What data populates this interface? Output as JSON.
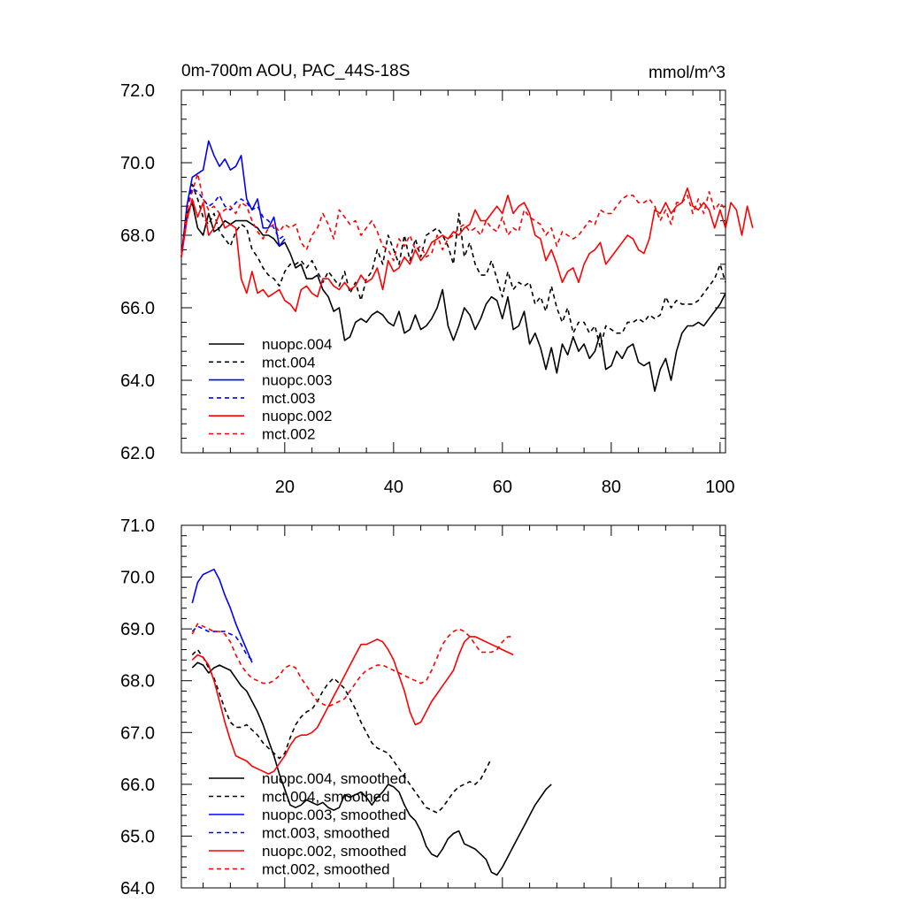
{
  "chart_data": [
    {
      "type": "line",
      "title": "0m-700m AOU, PAC_44S-18S",
      "units": "mmol/m^3",
      "xlim": [
        1,
        101
      ],
      "ylim": [
        62.0,
        72.0
      ],
      "xticks": [
        20,
        40,
        60,
        80,
        100
      ],
      "yticks": [
        62.0,
        64.0,
        66.0,
        68.0,
        70.0,
        72.0
      ],
      "ytick_labels": [
        "62.0",
        "64.0",
        "66.0",
        "68.0",
        "70.0",
        "72.0"
      ],
      "legend_position": "lower-left",
      "series": [
        {
          "name": "nuopc.004",
          "color": "#000000",
          "style": "solid",
          "x0": 1,
          "values": [
            67.4,
            68.6,
            68.9,
            68.2,
            68.0,
            68.6,
            68.1,
            68.2,
            68.4,
            68.3,
            68.4,
            68.4,
            68.4,
            68.3,
            68.2,
            68.0,
            68.0,
            67.9,
            67.7,
            67.8,
            67.5,
            67.1,
            67.2,
            66.8,
            66.8,
            66.9,
            66.5,
            66.3,
            65.9,
            66.0,
            65.1,
            65.2,
            65.6,
            65.7,
            65.6,
            65.8,
            65.9,
            65.8,
            65.6,
            65.5,
            65.9,
            65.3,
            65.4,
            65.8,
            65.4,
            65.5,
            65.7,
            66.0,
            66.5,
            65.5,
            65.1,
            65.5,
            66.0,
            65.8,
            65.4,
            65.7,
            66.1,
            66.3,
            66.2,
            65.7,
            66.3,
            65.4,
            65.5,
            65.9,
            65.0,
            65.3,
            64.9,
            64.3,
            64.9,
            64.2,
            65.0,
            64.7,
            65.2,
            64.8,
            65.0,
            64.6,
            64.8,
            65.3,
            64.3,
            64.4,
            64.8,
            64.6,
            64.9,
            65.0,
            64.5,
            64.4,
            64.5,
            63.7,
            64.3,
            64.6,
            64.0,
            64.8,
            65.3,
            65.5,
            65.5,
            65.6,
            65.5,
            65.7,
            65.9,
            66.1,
            66.4
          ]
        },
        {
          "name": "mct.004",
          "color": "#000000",
          "style": "dashed",
          "x0": 1,
          "values": [
            67.4,
            68.7,
            69.4,
            69.0,
            68.5,
            68.3,
            68.6,
            68.1,
            67.9,
            67.7,
            68.1,
            68.3,
            68.2,
            67.6,
            67.4,
            67.1,
            66.9,
            66.8,
            66.6,
            67.0,
            67.2,
            67.2,
            67.3,
            67.1,
            67.3,
            67.0,
            66.7,
            67.0,
            66.8,
            66.6,
            67.0,
            66.4,
            66.7,
            66.2,
            66.8,
            67.0,
            67.6,
            67.2,
            68.0,
            67.6,
            67.2,
            68.0,
            67.3,
            67.9,
            67.4,
            68.0,
            68.1,
            68.2,
            68.0,
            67.7,
            67.2,
            68.6,
            67.4,
            67.8,
            67.2,
            66.9,
            66.9,
            67.3,
            66.8,
            66.3,
            67.0,
            66.5,
            66.7,
            66.6,
            66.7,
            66.1,
            66.3,
            65.9,
            66.6,
            66.0,
            65.6,
            66.0,
            65.3,
            65.6,
            65.6,
            65.3,
            65.5,
            64.9,
            65.5,
            65.4,
            65.3,
            65.3,
            65.6,
            65.6,
            65.7,
            65.6,
            65.8,
            65.7,
            65.8,
            66.3,
            66.0,
            66.2,
            66.1,
            66.1,
            66.1,
            66.2,
            66.4,
            66.6,
            66.8,
            67.2,
            66.7
          ]
        },
        {
          "name": "nuopc.003",
          "color": "#0000ff",
          "style": "solid",
          "x0": 1,
          "values": [
            67.4,
            68.8,
            69.6,
            69.7,
            69.8,
            70.6,
            70.2,
            69.9,
            70.1,
            69.8,
            69.9,
            70.2,
            69.0,
            68.7,
            69.0,
            68.2,
            68.2,
            68.5,
            67.7,
            67.9
          ]
        },
        {
          "name": "mct.003",
          "color": "#0000ff",
          "style": "dashed",
          "x0": 1,
          "values": [
            67.4,
            68.8,
            69.3,
            69.2,
            69.0,
            68.8,
            68.9,
            69.1,
            68.8,
            68.7,
            68.9,
            69.0,
            68.9,
            68.7,
            68.8,
            68.5,
            68.4,
            68.2,
            67.9,
            68.0
          ]
        },
        {
          "name": "nuopc.002",
          "color": "#ff0000",
          "style": "solid",
          "x0": 1,
          "values": [
            67.4,
            68.4,
            69.0,
            68.5,
            68.9,
            68.0,
            68.2,
            68.6,
            68.2,
            68.3,
            68.2,
            66.8,
            66.4,
            67.0,
            66.4,
            66.5,
            66.3,
            66.4,
            66.5,
            66.2,
            66.1,
            65.9,
            66.5,
            66.6,
            66.4,
            66.3,
            66.8,
            66.8,
            66.6,
            66.5,
            66.7,
            66.5,
            66.6,
            66.9,
            66.7,
            66.8,
            67.1,
            66.5,
            67.3,
            67.0,
            67.1,
            67.4,
            67.2,
            67.6,
            67.3,
            67.5,
            67.8,
            67.9,
            68.0,
            67.9,
            68.1,
            68.0,
            68.2,
            68.3,
            68.7,
            68.4,
            68.4,
            68.6,
            68.8,
            68.6,
            69.1,
            68.6,
            68.8,
            68.9,
            68.6,
            68.0,
            67.9,
            67.3,
            67.6,
            67.2,
            66.7,
            67.0,
            67.1,
            66.7,
            67.2,
            67.5,
            67.6,
            67.8,
            67.2,
            67.4,
            67.6,
            67.8,
            68.0,
            67.9,
            67.6,
            67.5,
            67.9,
            68.7,
            68.6,
            68.9,
            68.6,
            68.8,
            68.9,
            69.3,
            68.8,
            68.7,
            68.9,
            68.7,
            68.2,
            68.7,
            68.2,
            68.9,
            68.7,
            68.0,
            68.8,
            68.2
          ]
        },
        {
          "name": "mct.002",
          "color": "#ff0000",
          "style": "dashed",
          "x0": 1,
          "values": [
            67.4,
            68.7,
            69.2,
            69.7,
            69.0,
            68.7,
            68.8,
            68.6,
            68.7,
            68.8,
            68.6,
            68.9,
            68.8,
            68.4,
            68.1,
            67.9,
            68.2,
            68.3,
            68.1,
            68.3,
            68.2,
            68.3,
            67.8,
            67.6,
            68.0,
            68.2,
            68.6,
            68.3,
            67.9,
            68.7,
            68.5,
            68.3,
            68.4,
            68.0,
            68.2,
            68.4,
            68.1,
            67.7,
            67.6,
            67.3,
            67.9,
            67.7,
            68.0,
            67.6,
            67.7,
            67.4,
            67.5,
            68.0,
            67.6,
            67.9,
            68.0,
            68.2,
            68.3,
            68.1,
            68.2,
            68.0,
            68.4,
            68.2,
            68.1,
            68.5,
            68.0,
            68.2,
            68.1,
            68.7,
            68.5,
            68.4,
            68.3,
            68.0,
            68.2,
            67.7,
            68.1,
            68.0,
            67.9,
            68.0,
            68.2,
            68.4,
            68.3,
            68.7,
            68.6,
            68.6,
            68.8,
            69.0,
            69.1,
            69.1,
            68.9,
            68.9,
            69.0,
            68.8,
            68.4,
            68.7,
            68.3,
            68.9,
            68.9,
            69.1,
            68.6,
            69.0,
            68.6,
            69.2,
            68.7,
            68.9,
            68.7
          ]
        }
      ]
    },
    {
      "type": "line",
      "title": "",
      "xlim": [
        1,
        101
      ],
      "ylim": [
        64.0,
        71.0
      ],
      "yticks": [
        64.0,
        65.0,
        66.0,
        67.0,
        68.0,
        69.0,
        70.0,
        71.0
      ],
      "ytick_labels": [
        "64.0",
        "65.0",
        "66.0",
        "67.0",
        "68.0",
        "69.0",
        "70.0",
        "71.0"
      ],
      "legend_position": "lower-left",
      "series": [
        {
          "name": "nuopc.004, smoothed",
          "color": "#000000",
          "style": "solid",
          "x0": 3,
          "values": [
            68.25,
            68.35,
            68.3,
            68.15,
            68.25,
            68.3,
            68.25,
            68.2,
            68.05,
            67.9,
            67.8,
            67.6,
            67.4,
            67.15,
            66.85,
            66.55,
            66.2,
            65.9,
            65.6,
            65.55,
            65.6,
            65.7,
            65.65,
            65.6,
            65.65,
            65.55,
            65.5,
            65.55,
            65.8,
            65.75,
            65.8,
            65.85,
            65.75,
            65.6,
            65.75,
            65.85,
            66.0,
            65.95,
            65.85,
            65.6,
            65.4,
            65.3,
            65.1,
            64.8,
            64.65,
            64.6,
            64.75,
            64.95,
            65.05,
            65.1,
            64.85,
            64.8,
            64.75,
            64.65,
            64.55,
            64.3,
            64.25,
            64.4,
            64.6,
            64.8,
            65.0,
            65.2,
            65.4,
            65.6,
            65.75,
            65.9,
            66.0
          ]
        },
        {
          "name": "mct.004, smoothed",
          "color": "#000000",
          "style": "dashed",
          "x0": 3,
          "values": [
            68.5,
            68.6,
            68.45,
            68.25,
            68.05,
            67.75,
            67.45,
            67.2,
            67.1,
            67.1,
            67.15,
            67.05,
            66.95,
            66.8,
            66.7,
            66.6,
            66.5,
            66.6,
            66.9,
            67.15,
            67.3,
            67.4,
            67.45,
            67.6,
            67.8,
            67.95,
            68.05,
            67.95,
            67.85,
            67.65,
            67.45,
            67.2,
            67.0,
            66.8,
            66.7,
            66.65,
            66.6,
            66.45,
            66.3,
            66.15,
            66.0,
            65.85,
            65.7,
            65.55,
            65.5,
            65.45,
            65.55,
            65.7,
            65.85,
            65.95,
            66.0,
            66.05,
            66.0,
            66.1,
            66.3,
            66.5
          ]
        },
        {
          "name": "nuopc.003, smoothed",
          "color": "#0000ff",
          "style": "solid",
          "x0": 3,
          "values": [
            69.5,
            69.9,
            70.05,
            70.1,
            70.15,
            69.95,
            69.65,
            69.4,
            69.1,
            68.85,
            68.6,
            68.35
          ]
        },
        {
          "name": "mct.003, smoothed",
          "color": "#0000ff",
          "style": "dashed",
          "x0": 3,
          "values": [
            68.95,
            69.05,
            69.0,
            68.95,
            68.95,
            68.95,
            68.95,
            68.9,
            68.85,
            68.7,
            68.5,
            68.4
          ]
        },
        {
          "name": "nuopc.002, smoothed",
          "color": "#ff0000",
          "style": "solid",
          "x0": 3,
          "values": [
            68.4,
            68.5,
            68.45,
            68.3,
            68.0,
            67.6,
            67.2,
            66.85,
            66.55,
            66.5,
            66.45,
            66.35,
            66.3,
            66.25,
            66.2,
            66.25,
            66.4,
            66.55,
            66.75,
            66.9,
            66.95,
            66.95,
            67.0,
            67.1,
            67.3,
            67.5,
            67.7,
            67.9,
            68.1,
            68.3,
            68.5,
            68.7,
            68.7,
            68.75,
            68.8,
            68.75,
            68.6,
            68.4,
            68.1,
            67.8,
            67.4,
            67.15,
            67.2,
            67.4,
            67.6,
            67.75,
            67.9,
            68.05,
            68.2,
            68.5,
            68.75,
            68.85,
            68.85,
            68.8,
            68.75,
            68.7,
            68.65,
            68.6,
            68.55,
            68.5
          ]
        },
        {
          "name": "mct.002, smoothed",
          "color": "#ff0000",
          "style": "dashed",
          "x0": 3,
          "values": [
            68.9,
            69.1,
            69.05,
            69.0,
            68.95,
            68.95,
            68.9,
            68.75,
            68.5,
            68.3,
            68.15,
            68.05,
            68.0,
            67.95,
            67.95,
            68.0,
            68.1,
            68.25,
            68.3,
            68.25,
            68.05,
            67.9,
            67.75,
            67.6,
            67.55,
            67.5,
            67.55,
            67.6,
            67.65,
            67.8,
            67.95,
            68.1,
            68.2,
            68.25,
            68.3,
            68.3,
            68.25,
            68.2,
            68.15,
            68.1,
            68.05,
            68.0,
            67.95,
            68.0,
            68.2,
            68.45,
            68.7,
            68.85,
            68.95,
            69.0,
            68.95,
            68.85,
            68.7,
            68.55,
            68.55,
            68.55,
            68.6,
            68.75,
            68.85,
            68.85
          ]
        }
      ]
    }
  ]
}
